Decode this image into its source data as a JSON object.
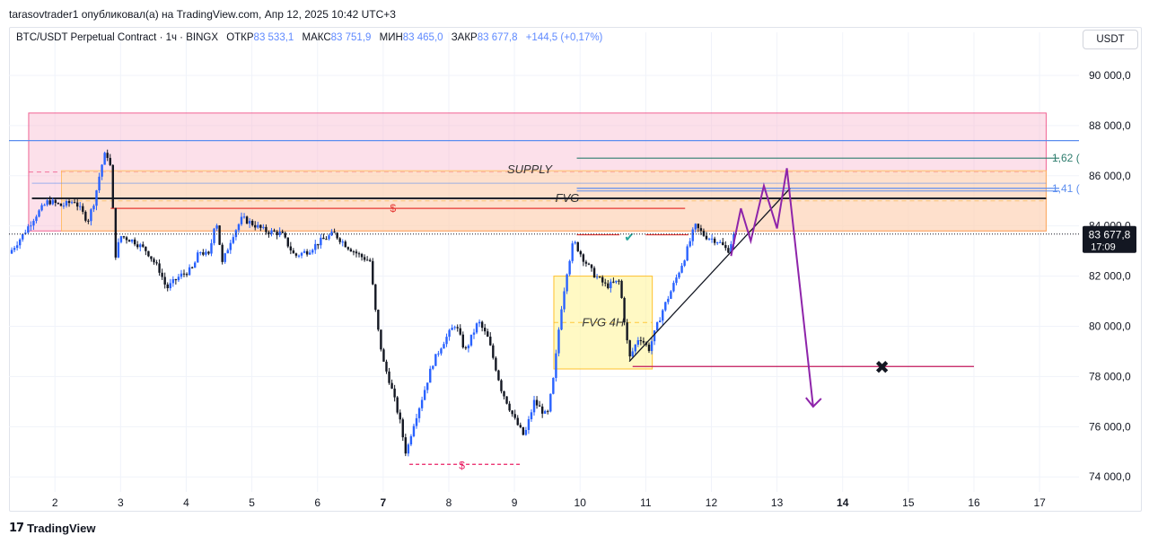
{
  "publisher_line": "tarasovtrader1 опубликовал(а) на TradingView.com, Апр 12, 2025 10:42 UTC+3",
  "legend": {
    "symbol": "BTC/USDT Perpetual Contract · 1ч · BINGX",
    "open_label": "ОТКР",
    "open": "83 533,1",
    "high_label": "МАКС",
    "high": "83 751,9",
    "low_label": "МИН",
    "low": "83 465,0",
    "close_label": "ЗАКР",
    "close": "83 677,8",
    "change": "+144,5 (+0,17%)"
  },
  "currency_button": "USDT",
  "footer": {
    "logo_icon": "tradingview-logo-icon",
    "brand": "TradingView"
  },
  "colors": {
    "up": "#2962ff",
    "down": "#131722",
    "supply_zone": "#f8bbd0",
    "fvg_zone": "#ffe0b2",
    "fvg4h_zone": "#fff59d",
    "projection": "#8e24aa",
    "fib_line": "#2e7d6e",
    "level_blue": "#5b8def"
  },
  "chart_data": {
    "type": "candlestick",
    "y_axis": {
      "unit": "USDT",
      "min": 73400,
      "max": 91000,
      "ticks": [
        74000,
        76000,
        78000,
        80000,
        82000,
        84000,
        86000,
        88000,
        90000
      ],
      "tick_labels": [
        "74 000,0",
        "76 000,0",
        "78 000,0",
        "80 000,0",
        "82 000,0",
        "84 000,0",
        "86 000,0",
        "88 000,0",
        "90 000,0"
      ]
    },
    "x_axis": {
      "labels": [
        "2",
        "3",
        "4",
        "5",
        "6",
        "7",
        "8",
        "9",
        "10",
        "11",
        "12",
        "13",
        "14",
        "15",
        "16",
        "17"
      ],
      "bold_labels": [
        "7",
        "14"
      ],
      "min": 1.3,
      "max": 17.6
    },
    "last_price": {
      "value": 83677.8,
      "label": "83 677,8",
      "countdown": "17:09"
    },
    "price_path": [
      [
        1.3,
        82900
      ],
      [
        1.5,
        83600
      ],
      [
        1.7,
        84400
      ],
      [
        1.9,
        85000
      ],
      [
        2.1,
        84800
      ],
      [
        2.3,
        85000
      ],
      [
        2.5,
        84200
      ],
      [
        2.6,
        85000
      ],
      [
        2.7,
        86300
      ],
      [
        2.78,
        87000
      ],
      [
        2.85,
        86300
      ],
      [
        2.92,
        82800
      ],
      [
        3.0,
        83600
      ],
      [
        3.2,
        83400
      ],
      [
        3.4,
        83000
      ],
      [
        3.6,
        82200
      ],
      [
        3.7,
        81500
      ],
      [
        3.9,
        82000
      ],
      [
        4.1,
        82300
      ],
      [
        4.2,
        83000
      ],
      [
        4.35,
        82800
      ],
      [
        4.45,
        84400
      ],
      [
        4.55,
        82500
      ],
      [
        4.7,
        83600
      ],
      [
        4.85,
        84300
      ],
      [
        5.0,
        84100
      ],
      [
        5.2,
        83800
      ],
      [
        5.45,
        83700
      ],
      [
        5.65,
        82800
      ],
      [
        5.85,
        83000
      ],
      [
        6.05,
        83400
      ],
      [
        6.25,
        83700
      ],
      [
        6.45,
        83200
      ],
      [
        6.65,
        82800
      ],
      [
        6.8,
        82600
      ],
      [
        6.9,
        80200
      ],
      [
        7.0,
        78600
      ],
      [
        7.1,
        77800
      ],
      [
        7.25,
        76300
      ],
      [
        7.35,
        74900
      ],
      [
        7.45,
        76000
      ],
      [
        7.6,
        77200
      ],
      [
        7.75,
        78500
      ],
      [
        7.9,
        79300
      ],
      [
        8.1,
        80100
      ],
      [
        8.25,
        79000
      ],
      [
        8.45,
        80200
      ],
      [
        8.6,
        79500
      ],
      [
        8.8,
        77500
      ],
      [
        9.0,
        76300
      ],
      [
        9.15,
        75600
      ],
      [
        9.3,
        77000
      ],
      [
        9.5,
        76400
      ],
      [
        9.6,
        78000
      ],
      [
        9.7,
        80500
      ],
      [
        9.8,
        82200
      ],
      [
        9.9,
        83400
      ],
      [
        10.05,
        82700
      ],
      [
        10.2,
        82100
      ],
      [
        10.4,
        81600
      ],
      [
        10.6,
        81800
      ],
      [
        10.75,
        78700
      ],
      [
        10.9,
        79600
      ],
      [
        11.05,
        79100
      ],
      [
        11.25,
        80600
      ],
      [
        11.4,
        81500
      ],
      [
        11.6,
        82800
      ],
      [
        11.75,
        84000
      ],
      [
        11.9,
        83600
      ],
      [
        12.1,
        83400
      ],
      [
        12.25,
        83000
      ],
      [
        12.35,
        83677.8
      ]
    ],
    "zones": [
      {
        "label": "SUPPLY",
        "x": [
          1.6,
          17.1
        ],
        "y": [
          83800,
          88500
        ]
      },
      {
        "label": "FVG",
        "x": [
          2.1,
          17.1
        ],
        "y": [
          83800,
          86200
        ]
      },
      {
        "label": "FVG 4H",
        "x": [
          9.6,
          11.1
        ],
        "y": [
          78300,
          82000
        ]
      }
    ],
    "fib_levels": [
      {
        "label": "1,62 (",
        "value": 86700
      },
      {
        "label": "1,41 (",
        "value": 85500
      }
    ],
    "annotations": [
      {
        "label": "$",
        "value": 84700
      },
      {
        "label": "$",
        "value": 74500
      },
      {
        "label": "✔",
        "value": 83600
      }
    ],
    "target_price": 78400,
    "projection_path": [
      [
        12.3,
        82800
      ],
      [
        12.45,
        84700
      ],
      [
        12.6,
        83400
      ],
      [
        12.8,
        85600
      ],
      [
        13.0,
        83900
      ],
      [
        13.15,
        86300
      ],
      [
        13.55,
        76800
      ]
    ]
  }
}
